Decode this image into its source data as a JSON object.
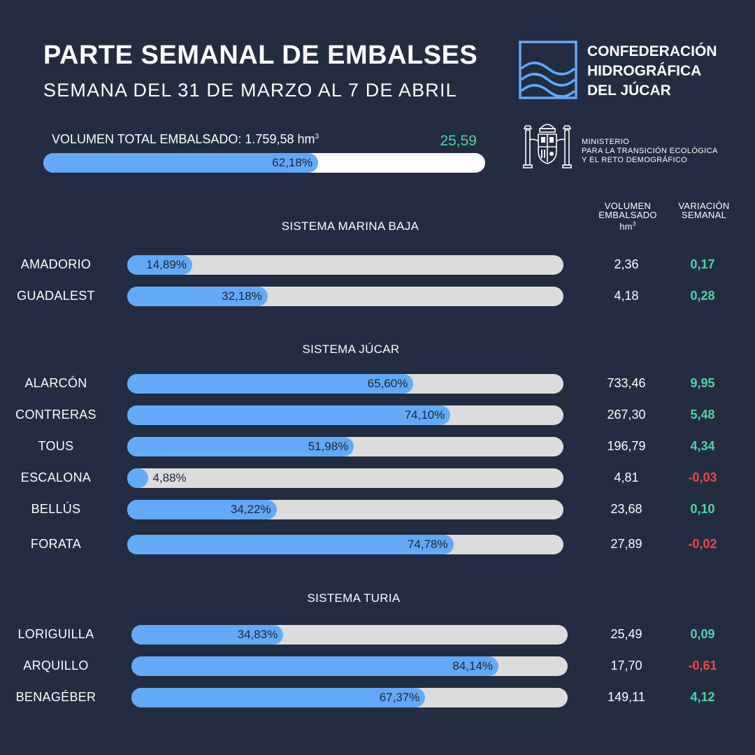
{
  "header": {
    "title": "PARTE SEMANAL DE EMBALSES",
    "subtitle": "SEMANA DEL 31 DE MARZO AL 7 DE ABRIL"
  },
  "total": {
    "label": "VOLUMEN TOTAL EMBALSADO: 1.759,58 hm",
    "unit_superscript": "3",
    "variation": "25,59",
    "percent_label": "62,18%",
    "percent_value": 62.18
  },
  "organization": {
    "name_lines": [
      "CONFEDERACIÓN",
      "HIDROGRÁFICA",
      "DEL JÚCAR"
    ],
    "ministry_lines": [
      "MINISTERIO",
      "PARA LA TRANSICIÓN ECOLÓGICA",
      "Y EL RETO DEMOGRÁFICO"
    ]
  },
  "columns": {
    "volume_lines": [
      "VOLUMEN",
      "EMBALSADO",
      "hm"
    ],
    "volume_superscript": "3",
    "variation_lines": [
      "VARIACIÓN",
      "SEMANAL"
    ]
  },
  "colors": {
    "background": "#232c40",
    "bar_fill": "#62aaf8",
    "bar_track": "#dcdcdc",
    "positive": "#4fd6a6",
    "negative": "#f24848"
  },
  "chart_data": {
    "type": "bar",
    "orientation": "horizontal",
    "value_unit": "%",
    "xlim": [
      0,
      100
    ],
    "systems": [
      {
        "name": "SISTEMA MARINA BAJA",
        "reservoirs": [
          {
            "name": "AMADORIO",
            "percent": 14.89,
            "percent_label": "14,89%",
            "volume": "2,36",
            "variation": "0,17",
            "variation_sign": "positive"
          },
          {
            "name": "GUADALEST",
            "percent": 32.18,
            "percent_label": "32,18%",
            "volume": "4,18",
            "variation": "0,28",
            "variation_sign": "positive"
          }
        ]
      },
      {
        "name": "SISTEMA JÚCAR",
        "reservoirs": [
          {
            "name": "ALARCÓN",
            "percent": 65.6,
            "percent_label": "65,60%",
            "volume": "733,46",
            "variation": "9,95",
            "variation_sign": "positive"
          },
          {
            "name": "CONTRERAS",
            "percent": 74.1,
            "percent_label": "74,10%",
            "volume": "267,30",
            "variation": "5,48",
            "variation_sign": "positive"
          },
          {
            "name": "TOUS",
            "percent": 51.98,
            "percent_label": "51,98%",
            "volume": "196,79",
            "variation": "4,34",
            "variation_sign": "positive"
          },
          {
            "name": "ESCALONA",
            "percent": 4.88,
            "percent_label": "4,88%",
            "volume": "4,81",
            "variation": "-0,03",
            "variation_sign": "negative"
          },
          {
            "name": "BELLÚS",
            "percent": 34.22,
            "percent_label": "34,22%",
            "volume": "23,68",
            "variation": "0,10",
            "variation_sign": "positive"
          },
          {
            "name": "FORATA",
            "percent": 74.78,
            "percent_label": "74,78%",
            "volume": "27,89",
            "variation": "-0,02",
            "variation_sign": "negative"
          }
        ]
      },
      {
        "name": "SISTEMA TURIA",
        "reservoirs": [
          {
            "name": "LORIGUILLA",
            "percent": 34.83,
            "percent_label": "34,83%",
            "volume": "25,49",
            "variation": "0,09",
            "variation_sign": "positive"
          },
          {
            "name": "ARQUILLO",
            "percent": 84.14,
            "percent_label": "84,14%",
            "volume": "17,70",
            "variation": "-0,61",
            "variation_sign": "negative"
          },
          {
            "name": "BENAGÉBER",
            "percent": 67.37,
            "percent_label": "67,37%",
            "volume": "149,11",
            "variation": "4,12",
            "variation_sign": "positive"
          }
        ]
      }
    ]
  }
}
